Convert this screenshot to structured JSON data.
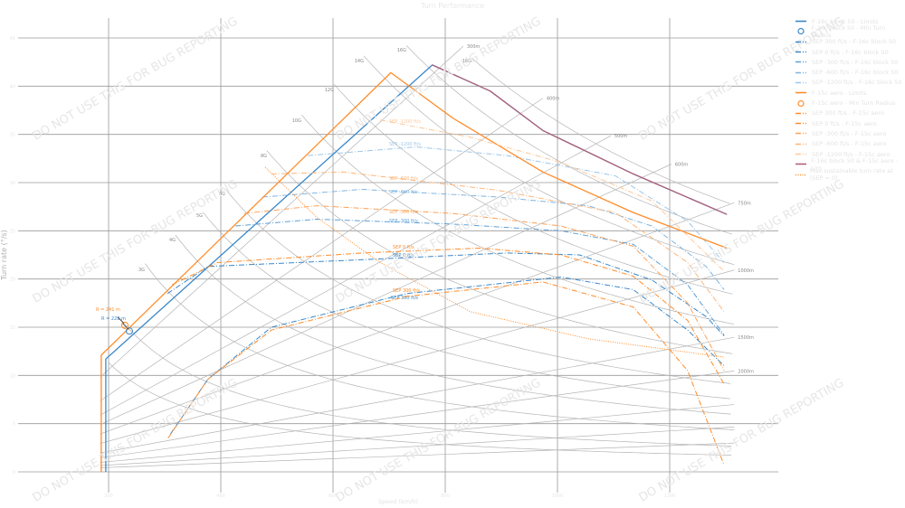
{
  "chart_data": {
    "type": "line",
    "title": "Turn Performance",
    "xlabel": "Speed (km/h)",
    "ylabel": "Turn rate (°/s)",
    "xlim": [
      40,
      1395
    ],
    "ylim": [
      0,
      45
    ],
    "xticks": [
      200,
      400,
      600,
      800,
      1000,
      1200
    ],
    "yticks": [
      0,
      5,
      10,
      15,
      20,
      25,
      30,
      35,
      40,
      45
    ],
    "grid": true,
    "legend_position": "right",
    "colors": {
      "blue": "#3a87c8",
      "orange": "#ff8c2a",
      "pink": "#d9536b",
      "guide": "#b5b5b5",
      "grid": "#9a9a9a"
    },
    "series": [
      {
        "name": "F-16c block 50 - Limits",
        "color": "#3a87c8",
        "style": "solid",
        "points": [
          [
            195,
            0
          ],
          [
            195,
            11.7
          ],
          [
            777,
            42.2
          ],
          [
            880,
            39.5
          ],
          [
            974,
            35.4
          ],
          [
            1135,
            30.9
          ],
          [
            1302,
            26.7
          ]
        ]
      },
      {
        "name": "SEP 300 ft/s - F-16c block 50",
        "label": "SEP 300 ft/s",
        "color": "#3a87c8",
        "style": "dashdot",
        "points": [
          [
            310,
            3.9
          ],
          [
            377,
            9.6
          ],
          [
            490,
            15.0
          ],
          [
            732,
            18.5
          ],
          [
            1006,
            20.2
          ],
          [
            1135,
            18.9
          ],
          [
            1232,
            14.7
          ],
          [
            1297,
            11.0
          ]
        ]
      },
      {
        "name": "SEP 0 ft/s - F-16c block 50",
        "label": "SEP 0 ft/s",
        "color": "#3a87c8",
        "style": "dashdot",
        "points": [
          [
            305,
            18.5
          ],
          [
            377,
            21.3
          ],
          [
            652,
            22.0
          ],
          [
            910,
            22.7
          ],
          [
            1039,
            22.5
          ],
          [
            1168,
            19.9
          ],
          [
            1265,
            16.1
          ],
          [
            1297,
            14.1
          ]
        ]
      },
      {
        "name": "SEP -300 ft/s - F-16c block 50",
        "label": "SEP -300 ft/s",
        "color": "#5fa0d6",
        "style": "dashdot",
        "points": [
          [
            426,
            25.5
          ],
          [
            571,
            26.2
          ],
          [
            813,
            25.7
          ],
          [
            1006,
            25.0
          ],
          [
            1135,
            23.6
          ],
          [
            1232,
            19.4
          ],
          [
            1297,
            14.2
          ]
        ]
      },
      {
        "name": "SEP -600 ft/s - F-16c block 50",
        "label": "SEP -600 ft/s",
        "color": "#7fb4e0",
        "style": "dashdot",
        "points": [
          [
            474,
            28.5
          ],
          [
            652,
            29.3
          ],
          [
            894,
            28.5
          ],
          [
            1055,
            27.6
          ],
          [
            1168,
            25.5
          ],
          [
            1265,
            21.3
          ],
          [
            1297,
            18.9
          ]
        ]
      },
      {
        "name": "SEP -1200 ft/s - F-16c block 50",
        "label": "SEP -1200 ft/s",
        "color": "#9cc6ea",
        "style": "dashdot",
        "points": [
          [
            555,
            32.8
          ],
          [
            748,
            33.7
          ],
          [
            910,
            32.8
          ],
          [
            1103,
            30.7
          ],
          [
            1232,
            26.0
          ],
          [
            1297,
            21.7
          ]
        ]
      },
      {
        "name": "F-15c aero - Limits",
        "color": "#ff8c2a",
        "style": "solid",
        "points": [
          [
            187,
            0
          ],
          [
            187,
            12.1
          ],
          [
            703,
            41.4
          ],
          [
            813,
            36.7
          ],
          [
            974,
            31.1
          ],
          [
            1135,
            26.9
          ],
          [
            1302,
            23.2
          ]
        ]
      },
      {
        "name": "SEP 300 ft/s - F-15c aero",
        "label": "SEP 300 ft/s",
        "color": "#ff8c2a",
        "style": "dashdot",
        "points": [
          [
            306,
            3.5
          ],
          [
            377,
            9.6
          ],
          [
            490,
            14.7
          ],
          [
            732,
            18.2
          ],
          [
            974,
            19.7
          ],
          [
            1135,
            17.1
          ],
          [
            1232,
            10.5
          ],
          [
            1297,
            0.7
          ]
        ]
      },
      {
        "name": "SEP 0 ft/s - F-15c aero",
        "label": "SEP 0 ft/s",
        "color": "#ff8c2a",
        "style": "dashdot",
        "points": [
          [
            313,
            19.4
          ],
          [
            394,
            21.7
          ],
          [
            652,
            22.7
          ],
          [
            861,
            23.2
          ],
          [
            1006,
            22.5
          ],
          [
            1135,
            20.3
          ],
          [
            1232,
            15.7
          ],
          [
            1297,
            9.1
          ]
        ]
      },
      {
        "name": "SEP -300 ft/s - F-15c aero",
        "label": "SEP -300 ft/s",
        "color": "#ffa155",
        "style": "dashdot",
        "points": [
          [
            442,
            26.8
          ],
          [
            571,
            27.6
          ],
          [
            813,
            26.8
          ],
          [
            1006,
            25.5
          ],
          [
            1135,
            23.4
          ],
          [
            1232,
            17.5
          ],
          [
            1297,
            10.5
          ]
        ]
      },
      {
        "name": "SEP -600 ft/s - F-15c aero",
        "label": "SEP -600 ft/s",
        "color": "#ffb577",
        "style": "dashdot",
        "points": [
          [
            490,
            30.9
          ],
          [
            619,
            31.1
          ],
          [
            894,
            29.2
          ],
          [
            1103,
            26.9
          ],
          [
            1232,
            21.7
          ],
          [
            1297,
            16.6
          ]
        ]
      },
      {
        "name": "SEP -1200 ft/s - F-15c aero",
        "label": "SEP -1200 ft/s",
        "color": "#ffc797",
        "style": "dashdot",
        "points": [
          [
            684,
            36.5
          ],
          [
            845,
            34.7
          ],
          [
            1006,
            32.1
          ],
          [
            1168,
            28.1
          ],
          [
            1297,
            20.8
          ]
        ]
      },
      {
        "name": "F-16c block 50 & F-15c aero - Lim",
        "color": "#b0607a",
        "style": "solid",
        "points": [
          [
            777,
            42.2
          ],
          [
            880,
            39.5
          ],
          [
            974,
            35.4
          ],
          [
            1135,
            30.9
          ],
          [
            1302,
            26.7
          ]
        ]
      },
      {
        "name": "Max sustainable turn rate at (SEP = 0)",
        "color": "#ff8c2a",
        "style": "dotted",
        "points": [
          [
            479,
            31.6
          ],
          [
            571,
            26.4
          ],
          [
            684,
            21.7
          ],
          [
            845,
            16.6
          ],
          [
            1055,
            13.8
          ],
          [
            1297,
            11.9
          ]
        ]
      }
    ],
    "min_radius": [
      {
        "name": "F-16c block 50 - Min Turn Radius",
        "color": "#3a87c8",
        "point": [
          237,
          14.6
        ],
        "label": "R = 228 m"
      },
      {
        "name": "F-15c aero - Min Turn Radius",
        "color": "#ff8c2a",
        "point": [
          229,
          15.2
        ],
        "label": "R = 241 m"
      }
    ],
    "g_lines": [
      {
        "g": 1.5,
        "from": 200
      },
      {
        "g": 2,
        "from": 220
      },
      {
        "g": 3,
        "from": 265,
        "label": "3G"
      },
      {
        "g": 4,
        "from": 319,
        "label": "4G"
      },
      {
        "g": 5,
        "from": 368,
        "label": "5G"
      },
      {
        "g": 6,
        "from": 408,
        "label": "6G"
      },
      {
        "g": 8,
        "from": 482,
        "label": "8G"
      },
      {
        "g": 10,
        "from": 544,
        "label": "10G"
      },
      {
        "g": 12,
        "from": 602,
        "label": "12G"
      },
      {
        "g": 14,
        "from": 655,
        "label": "14G"
      },
      {
        "g": 16,
        "from": 731,
        "label": "16G"
      },
      {
        "g": 18,
        "from": 847,
        "label": "18G"
      }
    ],
    "radius_lines": [
      {
        "r": 300,
        "to": 832,
        "label": "300m"
      },
      {
        "r": 400,
        "to": 974,
        "label": "400m"
      },
      {
        "r": 500,
        "to": 1095,
        "label": "500m"
      },
      {
        "r": 600,
        "to": 1203,
        "label": "600m"
      },
      {
        "r": 750,
        "to": 1315,
        "label": "750m"
      },
      {
        "r": 1000,
        "to": 1315,
        "label": "1000m"
      },
      {
        "r": 1500,
        "to": 1315,
        "label": "1500m"
      },
      {
        "r": 2000,
        "to": 1315,
        "label": "2000m"
      },
      {
        "r": 3000,
        "to": 1315
      },
      {
        "r": 4500,
        "to": 1315
      },
      {
        "r": 7000,
        "to": 1315
      }
    ],
    "watermark": "DO NOT USE THIS FOR BUG REPORTING"
  }
}
